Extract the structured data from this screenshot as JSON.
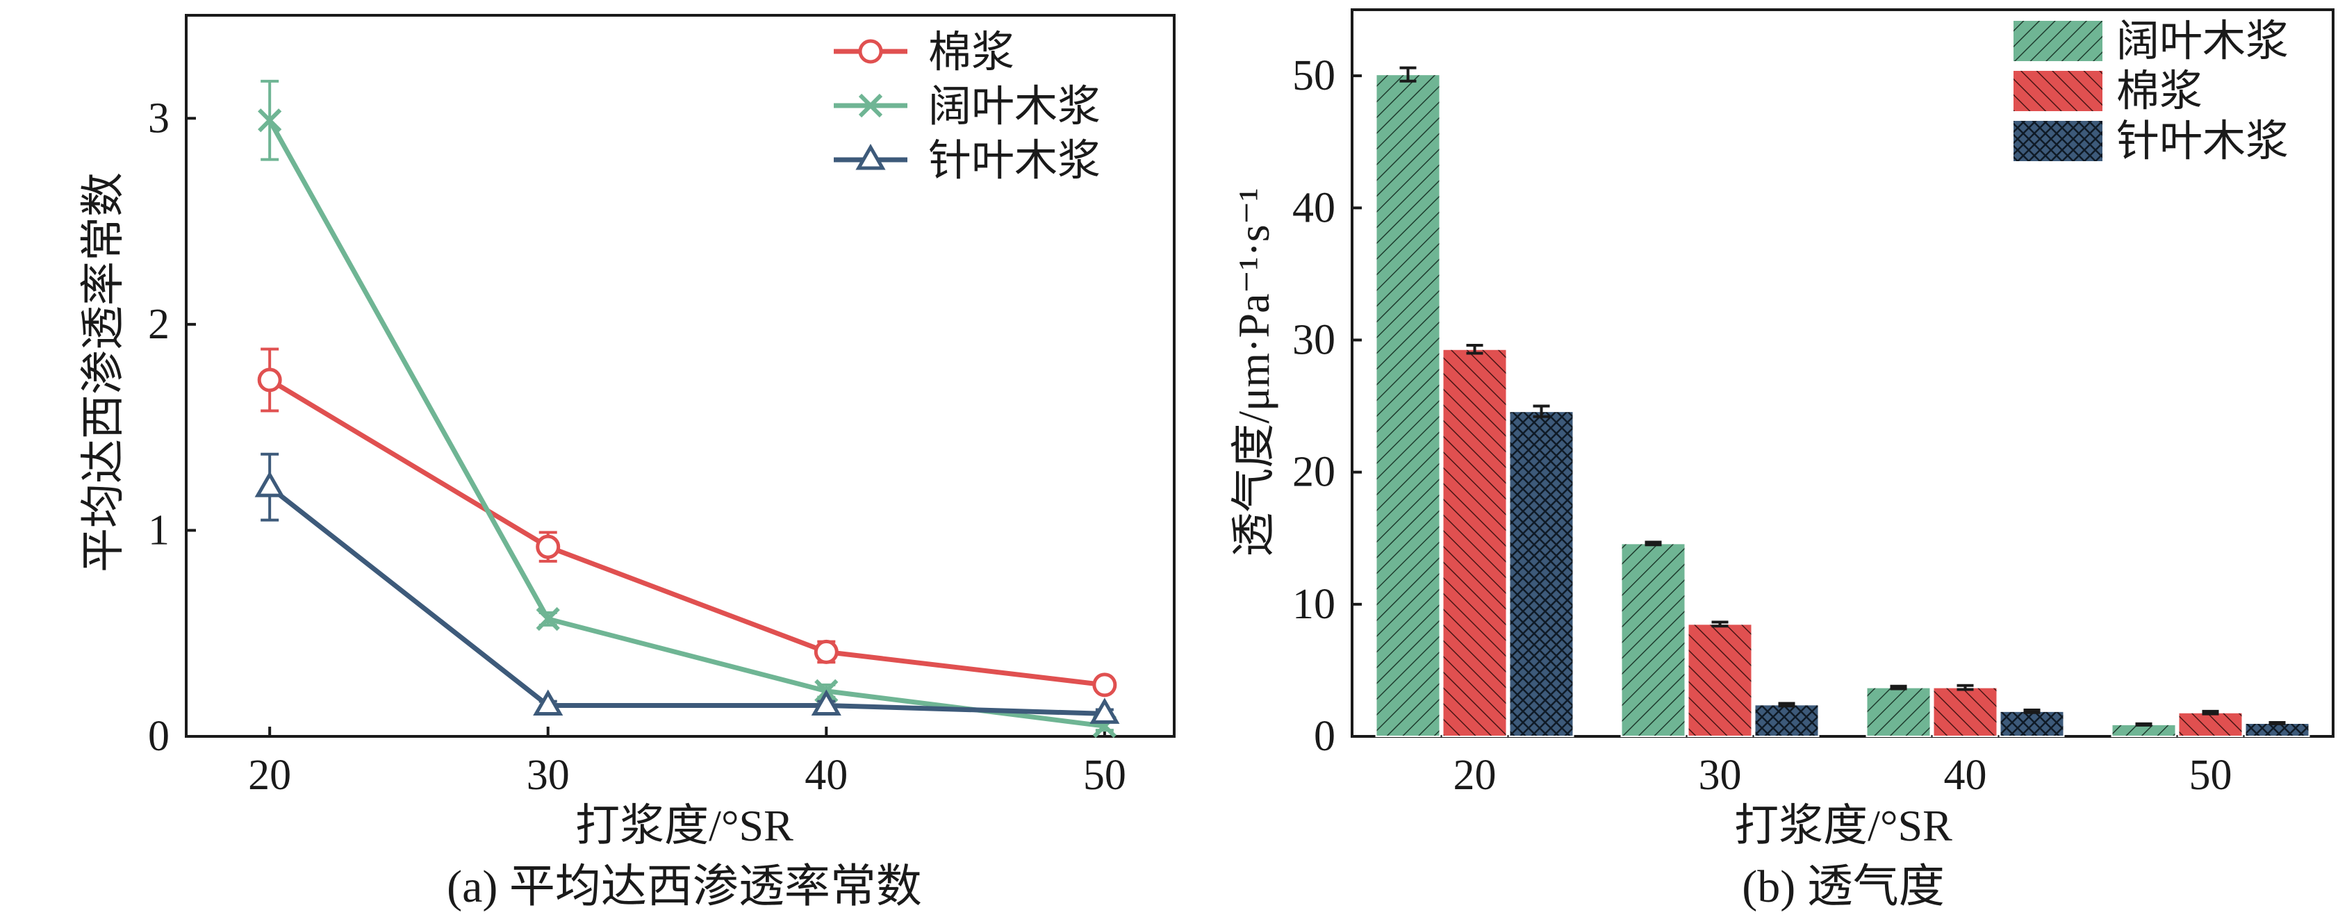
{
  "colors": {
    "cotton": "#e05050",
    "hardwood": "#6fb594",
    "softwood": "#3d5a7a"
  },
  "chart_data": [
    {
      "type": "line",
      "caption": "(a) 平均达西渗透率常数",
      "xlabel": "打浆度/°SR",
      "ylabel": "平均达西渗透率常数",
      "x": [
        20,
        30,
        40,
        50
      ],
      "xlim": [
        17,
        52.5
      ],
      "ylim": [
        0,
        3.5
      ],
      "xticks": [
        "20",
        "30",
        "40",
        "50"
      ],
      "yticks": [
        "0",
        "1",
        "2",
        "3"
      ],
      "legend_position": "top-right",
      "series": [
        {
          "name": "棉浆",
          "marker": "circle",
          "color_key": "cotton",
          "values": [
            1.73,
            0.92,
            0.41,
            0.25
          ],
          "errors": [
            0.15,
            0.07,
            0.05,
            0.02
          ]
        },
        {
          "name": "阔叶木浆",
          "marker": "x",
          "color_key": "hardwood",
          "values": [
            2.99,
            0.57,
            0.22,
            0.05
          ],
          "errors": [
            0.19,
            0.03,
            0.03,
            0.02
          ]
        },
        {
          "name": "针叶木浆",
          "marker": "triangle",
          "color_key": "softwood",
          "values": [
            1.21,
            0.15,
            0.15,
            0.11
          ],
          "errors": [
            0.16,
            0.02,
            0.02,
            0.02
          ]
        }
      ]
    },
    {
      "type": "bar",
      "caption": "(b) 透气度",
      "xlabel": "打浆度/°SR",
      "ylabel": "透气度/μm·Pa⁻¹·s⁻¹",
      "categories": [
        "20",
        "30",
        "40",
        "50"
      ],
      "ylim": [
        0,
        55
      ],
      "yticks": [
        "0",
        "10",
        "20",
        "30",
        "40",
        "50"
      ],
      "legend_position": "top-right",
      "series": [
        {
          "name": "阔叶木浆",
          "hatch": "diagonal-right",
          "color_key": "hardwood",
          "values": [
            50.1,
            14.6,
            3.7,
            0.9
          ],
          "errors": [
            0.5,
            0.1,
            0.1,
            0.05
          ]
        },
        {
          "name": "棉浆",
          "hatch": "diagonal-left",
          "color_key": "cotton",
          "values": [
            29.3,
            8.5,
            3.7,
            1.8
          ],
          "errors": [
            0.3,
            0.15,
            0.15,
            0.1
          ]
        },
        {
          "name": "针叶木浆",
          "hatch": "cross",
          "color_key": "softwood",
          "values": [
            24.6,
            2.4,
            1.9,
            1.0
          ],
          "errors": [
            0.4,
            0.1,
            0.1,
            0.05
          ]
        }
      ]
    }
  ]
}
